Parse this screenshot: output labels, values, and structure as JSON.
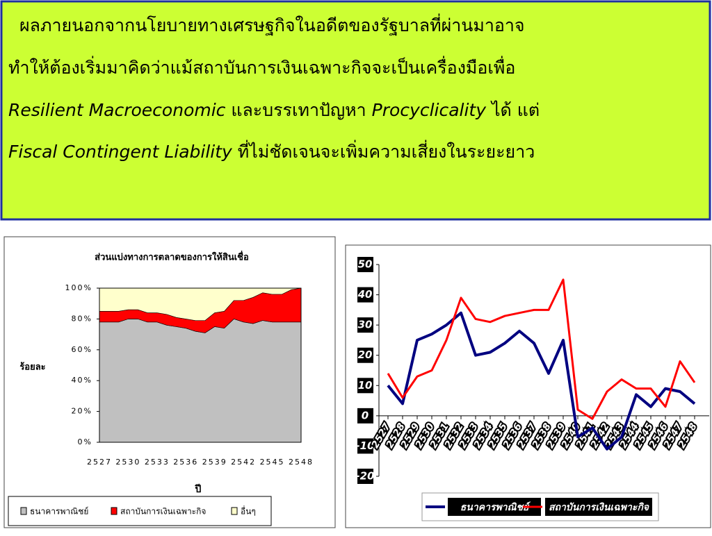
{
  "text_box": {
    "lines": [
      [
        {
          "text": "ผลภายนอกจากนโยบายทางเศรษฐกิจในอดีตของรัฐบาลที่ผ่านมาอาจ",
          "italic": false
        }
      ],
      [
        {
          "text": "ทำให้ต้องเริ่มมาคิดว่าแม้สถาบันการเงินเฉพาะกิจจะเป็นเครื่องมือเพื่อ",
          "italic": false
        }
      ],
      [
        {
          "text": "Resilient Macroeconomic",
          "italic": true
        },
        {
          "text": " และบรรเทาปัญหา ",
          "italic": false
        },
        {
          "text": "Procyclicality",
          "italic": true
        },
        {
          "text": " ได้ แต่",
          "italic": false
        }
      ],
      [
        {
          "text": "Fiscal Contingent Liability",
          "italic": true
        },
        {
          "text": " ที่ไม่ชัดเจนจะเพิ่มความเสี่ยงในระยะยาว",
          "italic": false
        }
      ]
    ]
  },
  "chart_data": [
    {
      "type": "area",
      "stacked": true,
      "title": "ส่วนแบ่งทางการตลาดของการให้สินเชื่อ",
      "y_label": "ร้อยละ",
      "x_label": "ปี",
      "categories": [
        "2527",
        null,
        null,
        "2530",
        null,
        null,
        "2533",
        null,
        null,
        "2536",
        null,
        null,
        "2539",
        null,
        null,
        "2542",
        null,
        null,
        "2545",
        null,
        null,
        "2548"
      ],
      "series": [
        {
          "name": "ธนาคารพาณิชย์",
          "color": "#c0c0c0",
          "values": [
            78,
            78,
            78,
            80,
            80,
            78,
            78,
            76,
            75,
            74,
            72,
            71,
            75,
            74,
            80,
            78,
            77,
            79,
            78,
            78,
            78,
            78
          ]
        },
        {
          "name": "สถาบันการเงินเฉพาะกิจ",
          "color": "#ff0000",
          "values": [
            7,
            7,
            7,
            6,
            6,
            6,
            6,
            7,
            6,
            6,
            7,
            8,
            9,
            11,
            12,
            14,
            17,
            18,
            18,
            18,
            21,
            22
          ]
        },
        {
          "name": "อื่นๆ",
          "color": "#ffffcc",
          "values": [
            15,
            15,
            15,
            14,
            14,
            16,
            16,
            17,
            19,
            20,
            21,
            21,
            16,
            15,
            8,
            8,
            6,
            3,
            4,
            4,
            1,
            0
          ]
        }
      ],
      "ylim": [
        0,
        100
      ],
      "yticks": [
        {
          "value": 0,
          "label": "0%"
        },
        {
          "value": 20,
          "label": "20%"
        },
        {
          "value": 40,
          "label": "40%"
        },
        {
          "value": 60,
          "label": "60%"
        },
        {
          "value": 80,
          "label": "80%"
        },
        {
          "value": 100,
          "label": "100%"
        }
      ]
    },
    {
      "type": "line",
      "categories": [
        "2527",
        "2528",
        "2529",
        "2530",
        "2531",
        "2532",
        "2533",
        "2534",
        "2535",
        "2536",
        "2537",
        "2538",
        "2539",
        "2540",
        "2541",
        "2542",
        "2543",
        "2544",
        "2545",
        "2546",
        "2547",
        "2548"
      ],
      "series": [
        {
          "name": "ธนาคารพาณิชย์",
          "color": "#000080",
          "values": [
            10,
            4,
            25,
            27,
            30,
            34,
            20,
            21,
            24,
            28,
            24,
            14,
            25,
            -7,
            -4,
            -11,
            -7,
            7,
            3,
            9,
            8,
            4
          ]
        },
        {
          "name": "สถาบันการเงินเฉพาะกิจ",
          "color": "#ff0000",
          "values": [
            14,
            6,
            13,
            15,
            25,
            39,
            32,
            31,
            33,
            34,
            35,
            35,
            45,
            2,
            -1,
            8,
            12,
            9,
            9,
            3,
            18,
            11
          ]
        }
      ],
      "ylim": [
        -20,
        50
      ],
      "yticks": [
        -20,
        -10,
        0,
        10,
        20,
        30,
        40,
        50
      ]
    }
  ]
}
